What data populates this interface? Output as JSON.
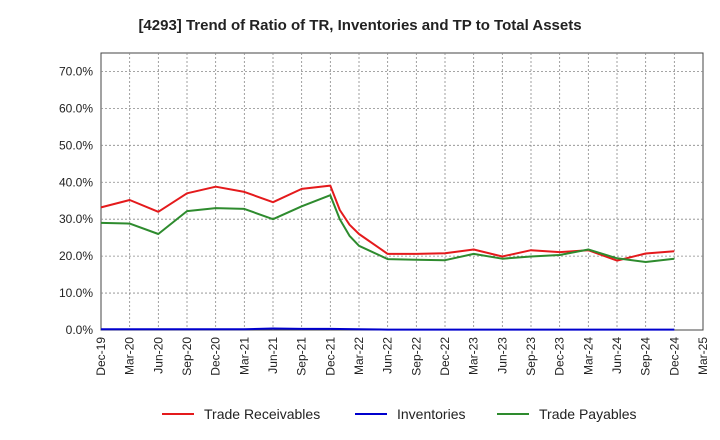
{
  "chart_data": {
    "type": "line",
    "title": "[4293]  Trend of Ratio of TR, Inventories and TP to Total Assets",
    "xlabel": "",
    "ylabel": "",
    "ylim": [
      0,
      75
    ],
    "y_ticks": [
      0,
      10,
      20,
      30,
      40,
      50,
      60,
      70
    ],
    "y_tick_labels": [
      "0.0%",
      "10.0%",
      "20.0%",
      "30.0%",
      "40.0%",
      "50.0%",
      "60.0%",
      "70.0%"
    ],
    "x_tick_labels": [
      "Dec-19",
      "Mar-20",
      "Jun-20",
      "Sep-20",
      "Dec-20",
      "Mar-21",
      "Jun-21",
      "Sep-21",
      "Dec-21",
      "Mar-22",
      "Jun-22",
      "Sep-22",
      "Dec-22",
      "Mar-23",
      "Jun-23",
      "Sep-23",
      "Dec-23",
      "Mar-24",
      "Jun-24",
      "Sep-24",
      "Dec-24",
      "Mar-25"
    ],
    "grid": true,
    "legend_position": "bottom",
    "series": [
      {
        "name": "Trade Receivables",
        "color": "#e41a1c",
        "x": [
          0,
          1,
          2,
          3,
          4,
          5,
          6,
          7,
          8,
          8.33,
          8.67,
          9,
          10,
          11,
          12,
          13,
          14,
          15,
          16,
          17,
          18,
          19,
          20
        ],
        "values": [
          33.2,
          35.2,
          32.0,
          37.0,
          38.8,
          37.4,
          34.6,
          38.2,
          39.1,
          32.5,
          28.5,
          26.0,
          20.6,
          20.6,
          20.8,
          21.8,
          19.9,
          21.6,
          21.1,
          21.6,
          18.8,
          20.7,
          21.3
        ]
      },
      {
        "name": "Inventories",
        "color": "#0000cd",
        "x": [
          0,
          1,
          2,
          3,
          4,
          5,
          6,
          7,
          8,
          9,
          10,
          11,
          12,
          13,
          14,
          15,
          16,
          17,
          18,
          19,
          20
        ],
        "values": [
          0.2,
          0.2,
          0.2,
          0.2,
          0.2,
          0.2,
          0.4,
          0.3,
          0.3,
          0.2,
          0.1,
          0.1,
          0.1,
          0.1,
          0.1,
          0.1,
          0.1,
          0.1,
          0.1,
          0.1,
          0.1
        ]
      },
      {
        "name": "Trade Payables",
        "color": "#2e8b2e",
        "x": [
          0,
          1,
          2,
          3,
          4,
          5,
          6,
          7,
          8,
          8.33,
          8.67,
          9,
          10,
          11,
          12,
          13,
          14,
          15,
          16,
          17,
          18,
          19,
          20
        ],
        "values": [
          29.0,
          28.8,
          26.0,
          32.2,
          33.0,
          32.8,
          30.0,
          33.5,
          36.5,
          30.0,
          25.5,
          22.8,
          19.2,
          19.0,
          18.9,
          20.6,
          19.3,
          19.9,
          20.3,
          21.8,
          19.4,
          18.4,
          19.3
        ]
      }
    ]
  }
}
